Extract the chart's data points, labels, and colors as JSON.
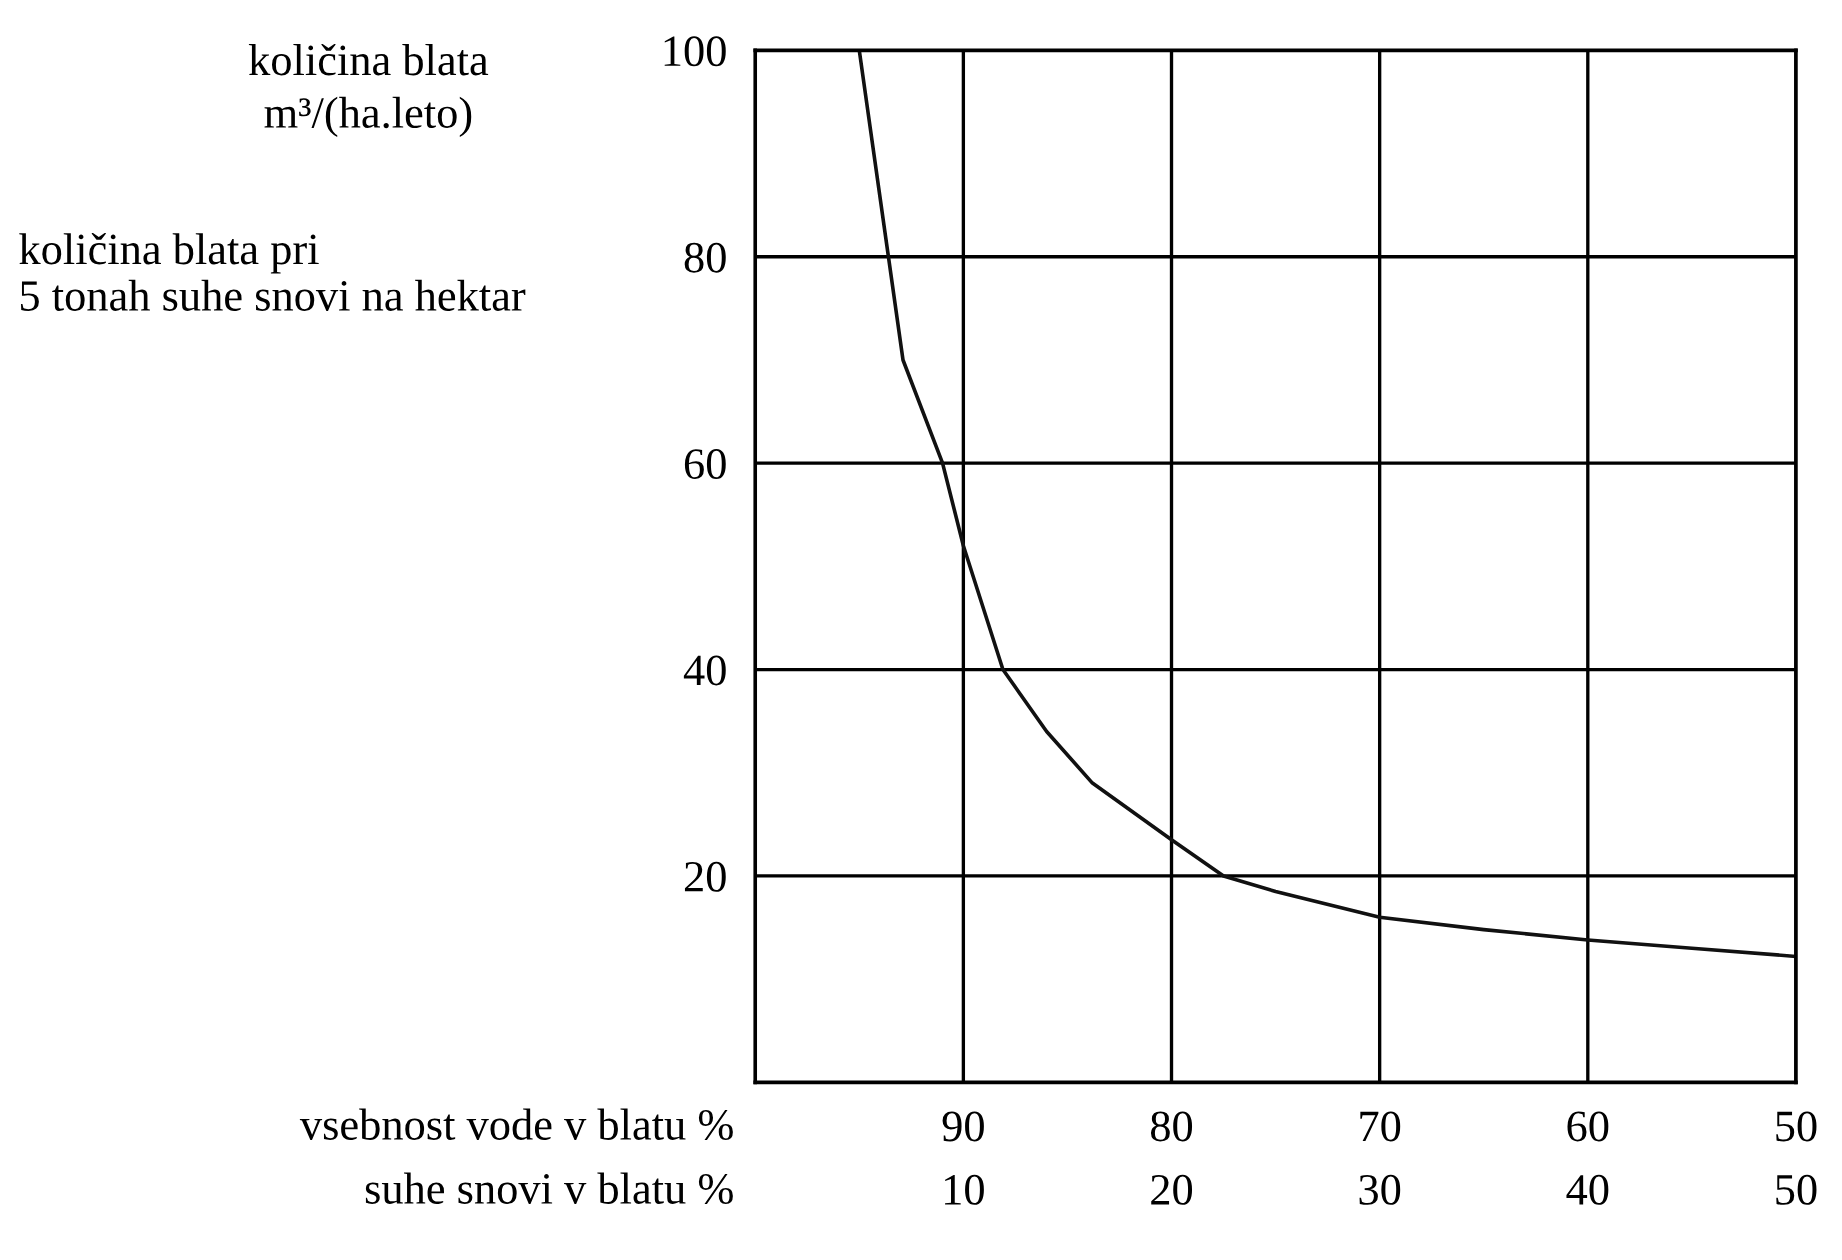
{
  "chart_data": {
    "type": "line",
    "ylabel": "količina blata\nm³/(ha.leto)",
    "xlabel": "vsebnost vode v blatu %",
    "x2label": "suhe snovi v blatu %",
    "annotations": [
      "količina blata pri\n5 tonah suhe snovi na hektar"
    ],
    "x": [
      95,
      93.6,
      92.9,
      91,
      90,
      88.1,
      86,
      83.8,
      80,
      77.5,
      75,
      70,
      65,
      60,
      55,
      50
    ],
    "series": [
      {
        "color": "#111111",
        "values": [
          100,
          80,
          70,
          60,
          52,
          40,
          34,
          29,
          23.5,
          20,
          18.5,
          16,
          14.8,
          13.8,
          13,
          12.2
        ]
      }
    ],
    "xlim": [
      100,
      50
    ],
    "xticks": [
      90,
      80,
      70,
      60,
      50
    ],
    "x2lim": [
      0,
      50
    ],
    "x2ticks": [
      10,
      20,
      30,
      40,
      50
    ],
    "ylim": [
      0,
      100
    ],
    "yticks": [
      20,
      40,
      60,
      80,
      100
    ],
    "grid": true,
    "marker": "none",
    "line_style": "solid"
  }
}
